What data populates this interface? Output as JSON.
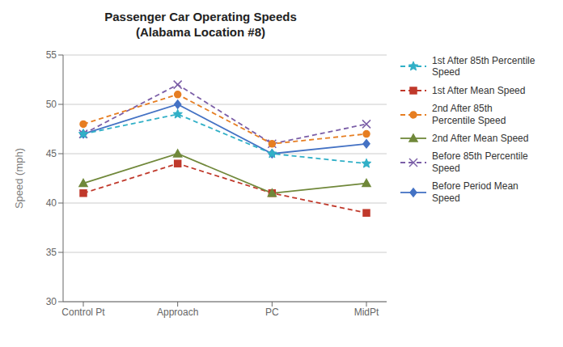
{
  "chart_data": {
    "type": "line",
    "title": "Passenger Car Operating Speeds\n(Alabama Location #8)",
    "ylabel": "Speed (mph)",
    "categories": [
      "Control Pt",
      "Approach",
      "PC",
      "MidPt"
    ],
    "series": [
      {
        "name": "Before Period Mean\nSpeed",
        "color": "#4472C4",
        "values": [
          47,
          50,
          45,
          46
        ],
        "marker": "diamond",
        "line_style": "solid"
      },
      {
        "name": "1st After Mean Speed",
        "color": "#C0392B",
        "values": [
          41,
          44,
          41,
          39
        ],
        "marker": "square",
        "line_style": "dashed"
      },
      {
        "name": "2nd After Mean Speed",
        "color": "#70883A",
        "values": [
          42,
          45,
          41,
          42
        ],
        "marker": "triangle",
        "line_style": "solid"
      },
      {
        "name": "Before 85th Percentile\nSpeed",
        "color": "#7B5EA7",
        "values": [
          47,
          52,
          46,
          48
        ],
        "marker": "x",
        "line_style": "dashed"
      },
      {
        "name": "1st After 85th Percentile\nSpeed",
        "color": "#31B0C7",
        "values": [
          47,
          49,
          45,
          44
        ],
        "marker": "star",
        "line_style": "dashed"
      },
      {
        "name": "2nd After 85th\nPercentile Speed",
        "color": "#E67E22",
        "values": [
          48,
          51,
          46,
          47
        ],
        "marker": "circle",
        "line_style": "dashed"
      }
    ],
    "ylim": [
      30,
      55
    ],
    "yticks": [
      30,
      35,
      40,
      45,
      50,
      55
    ],
    "grid": true,
    "legend": "right"
  }
}
